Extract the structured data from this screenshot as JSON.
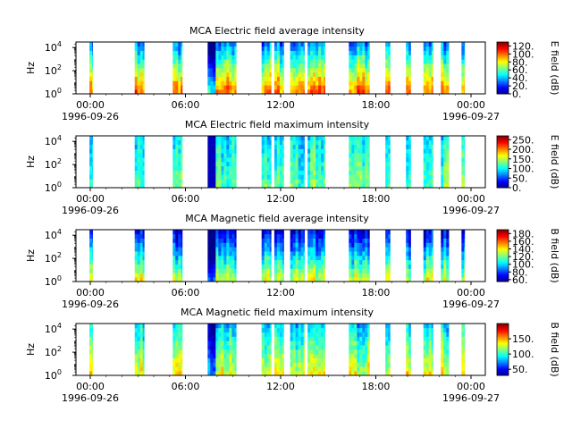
{
  "chart_data": [
    {
      "type": "heatmap",
      "title": "MCA  Electric field average intensity",
      "ylabel": "Hz",
      "y_scale": "log",
      "ylim": [
        1,
        30000
      ],
      "y_ticks": [
        "10",
        "10",
        "10"
      ],
      "y_tick_exponents": [
        "0",
        "2",
        "4"
      ],
      "x_ticks": [
        "00:00",
        "06:00",
        "12:00",
        "18:00",
        "00:00"
      ],
      "x_date_start": "1996-09-26",
      "x_date_end": "1996-09-27",
      "colorbar": {
        "label": "E field (dB)",
        "min": 0,
        "max": 130,
        "ticks": [
          "0.",
          "20.",
          "40.",
          "60.",
          "80.",
          "100.",
          "120."
        ]
      }
    },
    {
      "type": "heatmap",
      "title": "MCA  Electric field maximum intensity",
      "ylabel": "Hz",
      "y_scale": "log",
      "ylim": [
        1,
        30000
      ],
      "y_ticks": [
        "10",
        "10",
        "10"
      ],
      "y_tick_exponents": [
        "0",
        "2",
        "4"
      ],
      "x_ticks": [
        "00:00",
        "06:00",
        "12:00",
        "18:00",
        "00:00"
      ],
      "x_date_start": "1996-09-26",
      "x_date_end": "1996-09-27",
      "colorbar": {
        "label": "E field (dB)",
        "min": 0,
        "max": 270,
        "ticks": [
          "0.",
          "50.",
          "100.",
          "150.",
          "200.",
          "250."
        ]
      }
    },
    {
      "type": "heatmap",
      "title": "MCA  Magnetic field average intensity",
      "ylabel": "Hz",
      "y_scale": "log",
      "ylim": [
        1,
        30000
      ],
      "y_ticks": [
        "10",
        "10",
        "10"
      ],
      "y_tick_exponents": [
        "0",
        "2",
        "4"
      ],
      "x_ticks": [
        "00:00",
        "06:00",
        "12:00",
        "18:00",
        "00:00"
      ],
      "x_date_start": "1996-09-26",
      "x_date_end": "1996-09-27",
      "colorbar": {
        "label": "B field (dB)",
        "min": 55,
        "max": 190,
        "ticks": [
          "60.",
          "80.",
          "100.",
          "120.",
          "140.",
          "160.",
          "180."
        ]
      }
    },
    {
      "type": "heatmap",
      "title": "MCA  Magnetic field maximum intensity",
      "ylabel": "Hz",
      "y_scale": "log",
      "ylim": [
        1,
        30000
      ],
      "y_ticks": [
        "10",
        "10",
        "10"
      ],
      "y_tick_exponents": [
        "0",
        "2",
        "4"
      ],
      "x_ticks": [
        "00:00",
        "06:00",
        "12:00",
        "18:00",
        "00:00"
      ],
      "x_date_start": "1996-09-26",
      "x_date_end": "1996-09-27",
      "colorbar": {
        "label": "B field (dB)",
        "min": 30,
        "max": 200,
        "ticks": [
          "50.",
          "100.",
          "150."
        ]
      }
    }
  ],
  "data_intervals_hours": [
    [
      -0.05,
      0.15
    ],
    [
      2.8,
      3.4
    ],
    [
      5.2,
      5.8
    ],
    [
      7.4,
      9.2
    ],
    [
      10.8,
      11.4
    ],
    [
      11.6,
      12.2
    ],
    [
      12.6,
      13.5
    ],
    [
      13.7,
      14.8
    ],
    [
      16.3,
      17.6
    ],
    [
      18.6,
      18.9
    ],
    [
      19.9,
      20.2
    ],
    [
      21.0,
      21.6
    ],
    [
      22.1,
      22.6
    ],
    [
      23.4,
      23.6
    ]
  ],
  "colormap": [
    "#00008f",
    "#0000ff",
    "#0080ff",
    "#00ffff",
    "#80ff80",
    "#ffff00",
    "#ff8000",
    "#ff0000",
    "#800000"
  ]
}
